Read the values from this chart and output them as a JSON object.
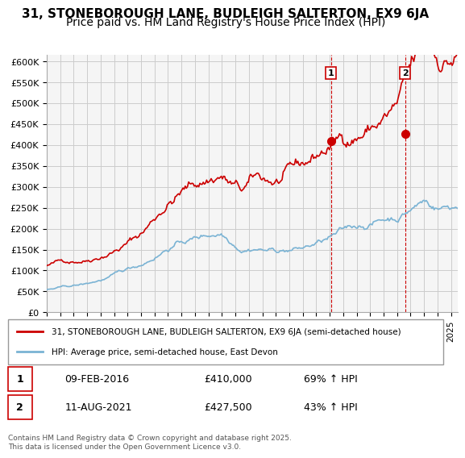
{
  "title": "31, STONEBOROUGH LANE, BUDLEIGH SALTERTON, EX9 6JA",
  "subtitle": "Price paid vs. HM Land Registry's House Price Index (HPI)",
  "ylabel_ticks": [
    "£0",
    "£50K",
    "£100K",
    "£150K",
    "£200K",
    "£250K",
    "£300K",
    "£350K",
    "£400K",
    "£450K",
    "£500K",
    "£550K",
    "£600K"
  ],
  "ytick_values": [
    0,
    50000,
    100000,
    150000,
    200000,
    250000,
    300000,
    350000,
    400000,
    450000,
    500000,
    550000,
    600000
  ],
  "ylim": [
    0,
    615000
  ],
  "xlim_start": 1995.0,
  "xlim_end": 2025.5,
  "red_line_color": "#cc0000",
  "blue_line_color": "#7ab3d4",
  "background_color": "#f5f5f5",
  "grid_color": "#cccccc",
  "marker1_x": 2016.1,
  "marker1_y": 410000,
  "marker2_x": 2021.6,
  "marker2_y": 427500,
  "vline1_x": 2016.1,
  "vline2_x": 2021.6,
  "legend_line1": "31, STONEBOROUGH LANE, BUDLEIGH SALTERTON, EX9 6JA (semi-detached house)",
  "legend_line2": "HPI: Average price, semi-detached house, East Devon",
  "table_row1": [
    "1",
    "09-FEB-2016",
    "£410,000",
    "69% ↑ HPI"
  ],
  "table_row2": [
    "2",
    "11-AUG-2021",
    "£427,500",
    "43% ↑ HPI"
  ],
  "footnote": "Contains HM Land Registry data © Crown copyright and database right 2025.\nThis data is licensed under the Open Government Licence v3.0.",
  "title_fontsize": 11,
  "subtitle_fontsize": 10
}
